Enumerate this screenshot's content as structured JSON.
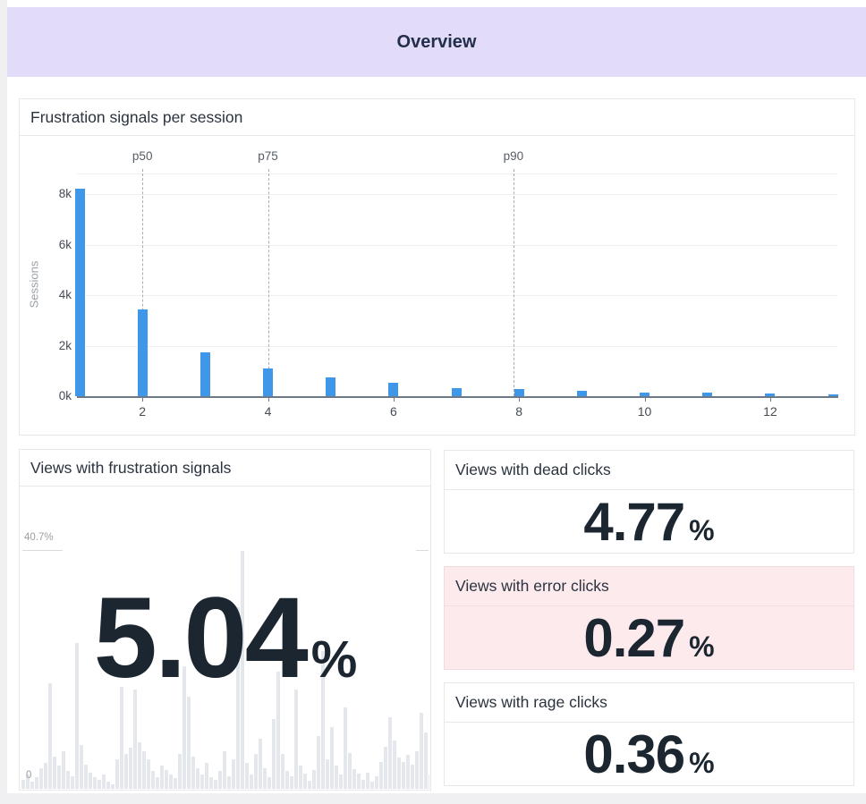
{
  "header": {
    "title": "Overview"
  },
  "cards": {
    "histogram": {
      "title": "Frustration signals per session",
      "ylabel": "Sessions"
    },
    "frustration": {
      "title": "Views with frustration signals",
      "value": "5.04",
      "unit": "%",
      "max_label": "40.7%",
      "min_label": "0"
    },
    "stats": [
      {
        "title": "Views with dead clicks",
        "value": "4.77",
        "unit": "%",
        "variant": "normal"
      },
      {
        "title": "Views with error clicks",
        "value": "0.27",
        "unit": "%",
        "variant": "alert"
      },
      {
        "title": "Views with rage clicks",
        "value": "0.36",
        "unit": "%",
        "variant": "normal"
      }
    ]
  },
  "colors": {
    "header_bg": "#e3dcf9",
    "bar_blue": "#3e97e9",
    "alert_bg": "#fdeaed",
    "value_text": "#1b2631"
  },
  "chart_data": [
    {
      "type": "bar",
      "title": "Frustration signals per session",
      "xlabel": "",
      "ylabel": "Sessions",
      "x": [
        1,
        2,
        3,
        4,
        5,
        6,
        7,
        8,
        9,
        10,
        11,
        12,
        13
      ],
      "values": [
        8200,
        3450,
        1750,
        1100,
        750,
        530,
        330,
        270,
        200,
        140,
        130,
        110,
        60
      ],
      "x_ticks": [
        2,
        4,
        6,
        8,
        10,
        12
      ],
      "y_ticks": [
        {
          "label": "0k",
          "value": 0
        },
        {
          "label": "2k",
          "value": 2000
        },
        {
          "label": "4k",
          "value": 4000
        },
        {
          "label": "6k",
          "value": 6000
        },
        {
          "label": "8k",
          "value": 8000
        }
      ],
      "xlim": [
        0.5,
        13.6
      ],
      "ylim": [
        0,
        8950
      ],
      "grid": true,
      "legend": "none",
      "bar_color": "#3e97e9",
      "annotations": [
        {
          "label": "p50",
          "x": 2
        },
        {
          "label": "p75",
          "x": 4
        },
        {
          "label": "p90",
          "x": 7.91
        }
      ]
    },
    {
      "type": "bar",
      "role": "background-sparkline",
      "title": "Views with frustration signals",
      "displayed_value": "5.04%",
      "ylim": [
        0,
        40.7
      ],
      "y_max_label": "40.7%",
      "y_min_label": "0",
      "values": [
        1.5,
        2.5,
        1.2,
        2.0,
        3.5,
        4.5,
        18,
        5.5,
        4.0,
        6.5,
        3.0,
        2.2,
        25,
        7.5,
        4.2,
        2.8,
        2.0,
        1.6,
        2.4,
        1.2,
        0.8,
        5.0,
        17.5,
        6.0,
        7.0,
        17,
        8.0,
        6.5,
        5.0,
        3.0,
        2.0,
        4.0,
        3.2,
        2.5,
        1.8,
        6.0,
        21,
        15.7,
        5.5,
        3.5,
        2.5,
        4.5,
        2.0,
        1.5,
        3.0,
        6.5,
        2.2,
        5.0,
        31,
        40.7,
        4.5,
        2.5,
        6.0,
        8.5,
        3.5,
        2.0,
        12,
        20,
        6.0,
        3.0,
        2.2,
        17,
        4.0,
        2.6,
        1.4,
        3.2,
        9.0,
        23.5,
        5.0,
        10.5,
        4.0,
        2.4,
        14,
        6.2,
        3.4,
        2.6,
        1.6,
        2.8,
        1.2,
        2.2,
        4.6,
        7.2,
        12.3,
        8.2,
        5.4,
        4.6,
        5.8,
        4.2,
        6.4,
        13,
        9.6,
        2.4
      ]
    }
  ]
}
